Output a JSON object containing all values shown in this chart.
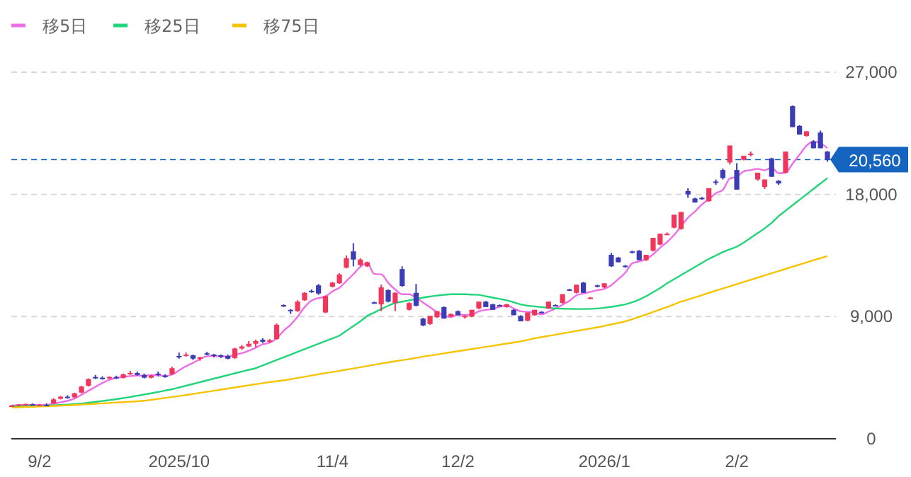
{
  "chart_data": {
    "type": "candlestick",
    "categories": [
      null,
      null,
      null,
      null,
      "9/2",
      null,
      null,
      null,
      null,
      null,
      null,
      null,
      null,
      null,
      null,
      null,
      null,
      null,
      null,
      null,
      null,
      null,
      null,
      null,
      "2025/10",
      null,
      null,
      null,
      null,
      null,
      null,
      null,
      null,
      null,
      null,
      null,
      null,
      null,
      null,
      null,
      null,
      null,
      null,
      null,
      null,
      null,
      "11/4",
      null,
      null,
      null,
      null,
      null,
      null,
      null,
      null,
      null,
      null,
      null,
      null,
      null,
      null,
      null,
      null,
      null,
      "12/2",
      null,
      null,
      null,
      null,
      null,
      null,
      null,
      null,
      null,
      null,
      null,
      null,
      null,
      null,
      null,
      null,
      null,
      null,
      null,
      null,
      "2026/1",
      null,
      null,
      null,
      null,
      null,
      null,
      null,
      null,
      null,
      null,
      null,
      null,
      null,
      null,
      null,
      null,
      null,
      null,
      "2/2",
      null,
      null,
      null,
      null,
      null,
      null,
      null,
      null,
      null,
      null,
      null,
      null,
      null
    ],
    "ylim": [
      0,
      27000
    ],
    "yticks": [
      0,
      {
        "value": 9000,
        "label": "9,000"
      },
      {
        "value": 18000,
        "label": "18,000"
      },
      {
        "value": 27000,
        "label": "27,000"
      }
    ],
    "grid": "y",
    "legend": "top left",
    "ohlc": [
      [
        2400,
        2500,
        2350,
        2450
      ],
      [
        2450,
        2550,
        2420,
        2520
      ],
      [
        2520,
        2600,
        2480,
        2550
      ],
      [
        2550,
        2600,
        2450,
        2480
      ],
      [
        2480,
        2560,
        2430,
        2500
      ],
      [
        2500,
        2600,
        2400,
        2450
      ],
      [
        2600,
        3000,
        2580,
        2900
      ],
      [
        2950,
        3150,
        2900,
        3100
      ],
      [
        3100,
        3200,
        2950,
        3000
      ],
      [
        3050,
        3400,
        3000,
        3350
      ],
      [
        3400,
        3900,
        3350,
        3850
      ],
      [
        3900,
        4450,
        3850,
        4400
      ],
      [
        4550,
        4700,
        4400,
        4500
      ],
      [
        4500,
        4600,
        4350,
        4450
      ],
      [
        4450,
        4600,
        4400,
        4550
      ],
      [
        4550,
        4650,
        4400,
        4500
      ],
      [
        4500,
        4800,
        4450,
        4750
      ],
      [
        4750,
        5000,
        4700,
        4850
      ],
      [
        4850,
        4950,
        4650,
        4700
      ],
      [
        4700,
        4800,
        4450,
        4500
      ],
      [
        4500,
        4700,
        4450,
        4650
      ],
      [
        4800,
        4950,
        4600,
        4700
      ],
      [
        4650,
        4750,
        4500,
        4600
      ],
      [
        4750,
        5300,
        4700,
        5200
      ],
      [
        6100,
        6350,
        5900,
        6050
      ],
      [
        6150,
        6350,
        6050,
        6200
      ],
      [
        6150,
        6200,
        5800,
        5900
      ],
      [
        5900,
        6050,
        5750,
        6000
      ],
      [
        6300,
        6400,
        6150,
        6250
      ],
      [
        6200,
        6250,
        6000,
        6100
      ],
      [
        6150,
        6200,
        5950,
        6050
      ],
      [
        6100,
        6200,
        5850,
        5900
      ],
      [
        5950,
        6700,
        5900,
        6650
      ],
      [
        6650,
        6900,
        6550,
        6800
      ],
      [
        6800,
        7200,
        6750,
        7000
      ],
      [
        7000,
        7300,
        6750,
        7200
      ],
      [
        7300,
        7400,
        7050,
        7150
      ],
      [
        7200,
        7350,
        7050,
        7250
      ],
      [
        7350,
        8500,
        7300,
        8400
      ],
      [
        9850,
        9900,
        9700,
        9800
      ],
      [
        9500,
        9550,
        9200,
        9400
      ],
      [
        9400,
        10200,
        9350,
        10100
      ],
      [
        10200,
        10800,
        10150,
        10750
      ],
      [
        10900,
        11000,
        10750,
        10850
      ],
      [
        11300,
        11400,
        10600,
        10700
      ],
      [
        9300,
        10550,
        9250,
        10500
      ],
      [
        11200,
        11550,
        11150,
        11500
      ],
      [
        11450,
        12200,
        11400,
        12100
      ],
      [
        12600,
        13500,
        12550,
        13300
      ],
      [
        13800,
        14400,
        12700,
        13200
      ],
      [
        12800,
        13300,
        12700,
        13200
      ],
      [
        12700,
        13050,
        12650,
        13000
      ],
      [
        10050,
        10100,
        9950,
        10000
      ],
      [
        9900,
        11350,
        9400,
        11150
      ],
      [
        10950,
        11000,
        10050,
        10100
      ],
      [
        10000,
        10800,
        9400,
        10750
      ],
      [
        12500,
        12700,
        11200,
        11250
      ],
      [
        9500,
        10050,
        9450,
        10000
      ],
      [
        10750,
        11400,
        9750,
        9800
      ],
      [
        8850,
        8900,
        8300,
        8350
      ],
      [
        8450,
        9050,
        8400,
        9050
      ],
      [
        8950,
        9400,
        8900,
        9400
      ],
      [
        9700,
        9750,
        8850,
        8850
      ],
      [
        9000,
        9200,
        8950,
        9200
      ],
      [
        9400,
        9450,
        9100,
        9100
      ],
      [
        8950,
        9100,
        8850,
        9050
      ],
      [
        9000,
        9500,
        8950,
        9500
      ],
      [
        9600,
        10100,
        9550,
        10100
      ],
      [
        10100,
        10150,
        9700,
        9700
      ],
      [
        9900,
        9950,
        9500,
        9500
      ],
      [
        9850,
        9900,
        9750,
        9800
      ],
      [
        9700,
        9950,
        9650,
        9900
      ],
      [
        9500,
        9550,
        9100,
        9100
      ],
      [
        9050,
        9100,
        8650,
        8650
      ],
      [
        8700,
        9300,
        8650,
        9300
      ],
      [
        9100,
        9500,
        9050,
        9500
      ],
      [
        9350,
        9400,
        9250,
        9300
      ],
      [
        9600,
        10100,
        9550,
        10100
      ],
      [
        9850,
        9900,
        9750,
        9800
      ],
      [
        10000,
        10650,
        9950,
        10650
      ],
      [
        11000,
        11050,
        10900,
        10950
      ],
      [
        10750,
        11350,
        10700,
        11350
      ],
      [
        11500,
        11550,
        10750,
        10750
      ],
      [
        10350,
        10450,
        10300,
        10400
      ],
      [
        11300,
        11350,
        11150,
        11250
      ],
      [
        11150,
        11450,
        11100,
        11450
      ],
      [
        13550,
        13700,
        12650,
        12700
      ],
      [
        13350,
        13400,
        13000,
        13000
      ],
      [
        12750,
        12800,
        12600,
        12700
      ],
      [
        13800,
        13850,
        13650,
        13750
      ],
      [
        13850,
        13900,
        13150,
        13150
      ],
      [
        13150,
        13550,
        13100,
        13550
      ],
      [
        13850,
        14800,
        13800,
        14800
      ],
      [
        14300,
        15100,
        14250,
        15100
      ],
      [
        15050,
        15200,
        15000,
        15100
      ],
      [
        15550,
        16500,
        15500,
        16500
      ],
      [
        15450,
        16700,
        15400,
        16700
      ],
      [
        18250,
        18450,
        17750,
        18000
      ],
      [
        17700,
        17750,
        17400,
        17400
      ],
      [
        17750,
        17800,
        17600,
        17700
      ],
      [
        17500,
        18450,
        17450,
        18450
      ],
      [
        18950,
        19100,
        18700,
        18900
      ],
      [
        19800,
        19900,
        19100,
        19200
      ],
      [
        20350,
        21600,
        20200,
        21600
      ],
      [
        19800,
        20300,
        18350,
        18350
      ],
      [
        20550,
        20850,
        20500,
        20850
      ],
      [
        20950,
        21150,
        20800,
        21000
      ],
      [
        19100,
        19600,
        19000,
        19600
      ],
      [
        18550,
        19100,
        18400,
        19100
      ],
      [
        20650,
        20700,
        19300,
        19300
      ],
      [
        19000,
        19050,
        18700,
        18800
      ],
      [
        19600,
        21150,
        19550,
        21150
      ],
      [
        24500,
        24550,
        22950,
        22950
      ],
      [
        23050,
        23100,
        22400,
        22400
      ],
      [
        22300,
        22650,
        22250,
        22650
      ],
      [
        21900,
        22000,
        21400,
        21400
      ],
      [
        22550,
        22700,
        21400,
        21400
      ],
      [
        21150,
        21200,
        20400,
        20560
      ]
    ],
    "colors": [
      "#f0365a",
      "#f0365a",
      "#f0365a",
      "#3c3cb4",
      "#f0365a",
      "#3c3cb4",
      "#f0365a",
      "#f0365a",
      "#3c3cb4",
      "#f0365a",
      "#f0365a",
      "#f0365a",
      "#3c3cb4",
      "#3c3cb4",
      "#f0365a",
      "#3c3cb4",
      "#f0365a",
      "#f0365a",
      "#3c3cb4",
      "#3c3cb4",
      "#f0365a",
      "#3c3cb4",
      "#3c3cb4",
      "#f0365a",
      "#3c3cb4",
      "#f0365a",
      "#3c3cb4",
      "#f0365a",
      "#3c3cb4",
      "#3c3cb4",
      "#3c3cb4",
      "#3c3cb4",
      "#f0365a",
      "#f0365a",
      "#f0365a",
      "#f0365a",
      "#3c3cb4",
      "#f0365a",
      "#f0365a",
      "#3c3cb4",
      "#3c3cb4",
      "#f0365a",
      "#f0365a",
      "#3c3cb4",
      "#3c3cb4",
      "#f0365a",
      "#f0365a",
      "#f0365a",
      "#f0365a",
      "#3c3cb4",
      "#f0365a",
      "#f0365a",
      "#3c3cb4",
      "#f0365a",
      "#3c3cb4",
      "#f0365a",
      "#3c3cb4",
      "#f0365a",
      "#3c3cb4",
      "#3c3cb4",
      "#f0365a",
      "#f0365a",
      "#3c3cb4",
      "#f0365a",
      "#3c3cb4",
      "#f0365a",
      "#f0365a",
      "#f0365a",
      "#3c3cb4",
      "#3c3cb4",
      "#3c3cb4",
      "#f0365a",
      "#3c3cb4",
      "#3c3cb4",
      "#f0365a",
      "#f0365a",
      "#3c3cb4",
      "#f0365a",
      "#3c3cb4",
      "#f0365a",
      "#3c3cb4",
      "#f0365a",
      "#3c3cb4",
      "#f0365a",
      "#3c3cb4",
      "#f0365a",
      "#3c3cb4",
      "#3c3cb4",
      "#3c3cb4",
      "#3c3cb4",
      "#3c3cb4",
      "#f0365a",
      "#f0365a",
      "#f0365a",
      "#f0365a",
      "#f0365a",
      "#f0365a",
      "#3c3cb4",
      "#3c3cb4",
      "#3c3cb4",
      "#f0365a",
      "#3c3cb4",
      "#3c3cb4",
      "#f0365a",
      "#3c3cb4",
      "#f0365a",
      "#f0365a",
      "#f0365a",
      "#f0365a",
      "#3c3cb4",
      "#3c3cb4",
      "#f0365a",
      "#3c3cb4",
      "#3c3cb4",
      "#f0365a",
      "#3c3cb4",
      "#3c3cb4",
      "#3c3cb4"
    ],
    "series": [
      {
        "name": "移5日",
        "type": "line",
        "color": "#ee6ee8",
        "values": [
          2450,
          2480,
          2500,
          2500,
          2500,
          2500,
          2580,
          2690,
          2790,
          2960,
          3240,
          3540,
          3820,
          4110,
          4350,
          4480,
          4550,
          4620,
          4650,
          4650,
          4690,
          4680,
          4630,
          4730,
          5040,
          5350,
          5590,
          5870,
          6080,
          6100,
          6060,
          6060,
          6190,
          6300,
          6480,
          6710,
          6960,
          7080,
          7400,
          7960,
          8400,
          8990,
          9690,
          10180,
          10360,
          10480,
          10860,
          11130,
          11620,
          12120,
          12660,
          12960,
          12140,
          12110,
          11490,
          11000,
          10650,
          10650,
          10380,
          10030,
          9690,
          9320,
          9090,
          8970,
          9120,
          9120,
          9140,
          9390,
          9490,
          9570,
          9720,
          9800,
          9600,
          9390,
          9350,
          9290,
          9170,
          9370,
          9600,
          9870,
          10160,
          10570,
          10700,
          10820,
          10940,
          11040,
          11310,
          11760,
          12220,
          12920,
          13060,
          13230,
          13590,
          14070,
          14490,
          15010,
          15640,
          16280,
          16740,
          17260,
          17650,
          18090,
          18330,
          19170,
          19300,
          19700,
          19790,
          19880,
          19770,
          19970,
          19560,
          19600,
          20260,
          20920,
          21590,
          21880,
          21760,
          21400
        ]
      },
      {
        "name": "移25日",
        "type": "line",
        "color": "#22d47a",
        "values": [
          2400,
          2410,
          2420,
          2430,
          2440,
          2450,
          2470,
          2490,
          2520,
          2560,
          2600,
          2660,
          2720,
          2780,
          2850,
          2920,
          3000,
          3080,
          3170,
          3260,
          3350,
          3450,
          3550,
          3650,
          3780,
          3910,
          4040,
          4170,
          4300,
          4430,
          4560,
          4690,
          4820,
          4950,
          5080,
          5200,
          5400,
          5600,
          5800,
          6000,
          6200,
          6400,
          6600,
          6800,
          7000,
          7200,
          7400,
          7600,
          7950,
          8300,
          8650,
          9050,
          9300,
          9550,
          9800,
          10000,
          10100,
          10200,
          10300,
          10400,
          10480,
          10550,
          10600,
          10650,
          10650,
          10650,
          10620,
          10600,
          10500,
          10400,
          10300,
          10200,
          10050,
          9900,
          9800,
          9750,
          9700,
          9650,
          9600,
          9580,
          9570,
          9560,
          9560,
          9570,
          9600,
          9650,
          9720,
          9800,
          9900,
          10050,
          10250,
          10500,
          10800,
          11100,
          11450,
          11750,
          12050,
          12350,
          12650,
          12950,
          13250,
          13500,
          13750,
          13950,
          14150,
          14450,
          14800,
          15150,
          15500,
          15900,
          16400,
          16800,
          17200,
          17600,
          18000,
          18400,
          18800,
          19200
        ]
      },
      {
        "name": "移75日",
        "type": "line",
        "color": "#f5c400",
        "values": [
          2300,
          2320,
          2340,
          2360,
          2380,
          2400,
          2420,
          2440,
          2460,
          2490,
          2520,
          2550,
          2580,
          2610,
          2640,
          2670,
          2700,
          2730,
          2760,
          2800,
          2870,
          2940,
          3010,
          3080,
          3150,
          3220,
          3300,
          3380,
          3460,
          3540,
          3620,
          3700,
          3780,
          3860,
          3940,
          4020,
          4100,
          4170,
          4240,
          4300,
          4390,
          4480,
          4570,
          4660,
          4750,
          4840,
          4920,
          5000,
          5090,
          5180,
          5270,
          5360,
          5450,
          5540,
          5630,
          5710,
          5790,
          5870,
          5960,
          6050,
          6130,
          6210,
          6290,
          6370,
          6450,
          6530,
          6610,
          6690,
          6770,
          6850,
          6930,
          7010,
          7090,
          7170,
          7280,
          7400,
          7490,
          7580,
          7670,
          7760,
          7850,
          7940,
          8030,
          8120,
          8210,
          8310,
          8420,
          8530,
          8650,
          8800,
          8980,
          9160,
          9340,
          9520,
          9700,
          9900,
          10100,
          10250,
          10420,
          10580,
          10750,
          10910,
          11070,
          11230,
          11390,
          11550,
          11710,
          11870,
          12030,
          12190,
          12350,
          12510,
          12670,
          12830,
          12990,
          13150,
          13300,
          13450
        ]
      }
    ],
    "ref_lines": [
      {
        "axis": "y",
        "value": 20560,
        "label": "20,560",
        "color": "#1565c0",
        "line_style": "dashed"
      }
    ]
  }
}
